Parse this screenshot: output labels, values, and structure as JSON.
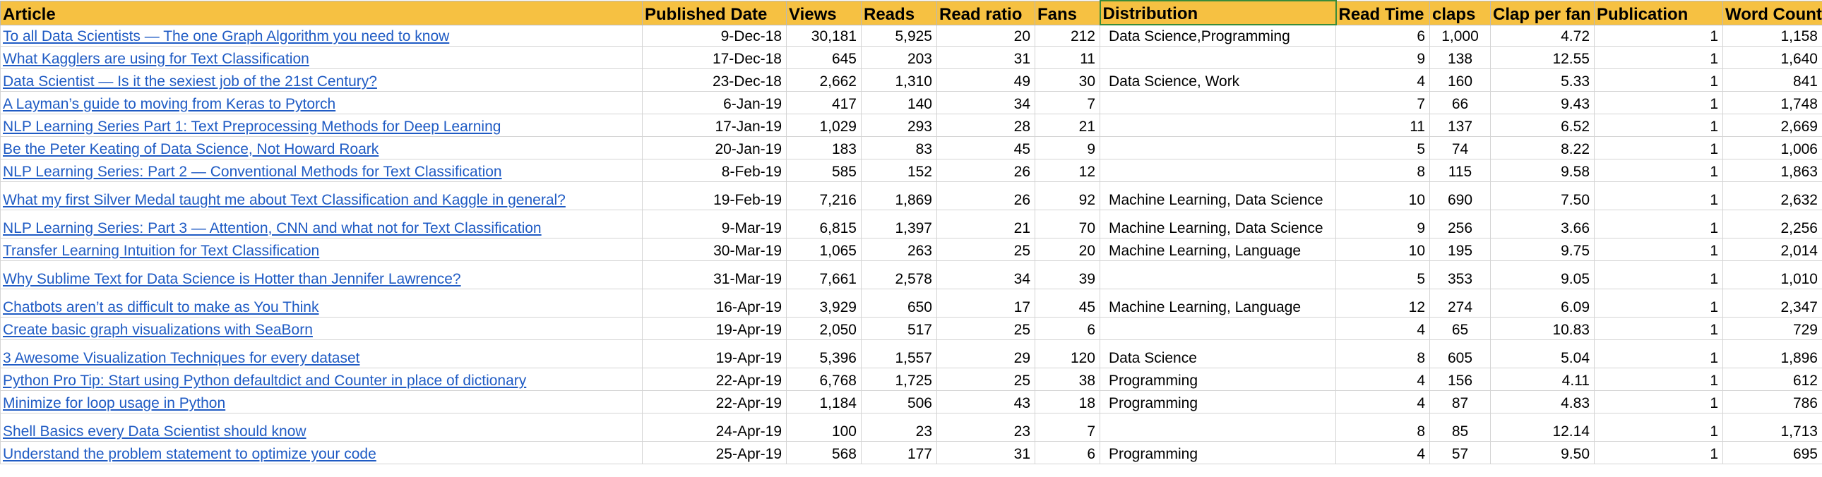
{
  "columns": [
    "Article",
    "Published Date",
    "Views",
    "Reads",
    "Read ratio",
    "Fans",
    "Distribution",
    "Read Time",
    "claps",
    "Clap per fan",
    "Publication",
    "Word Count"
  ],
  "rows": [
    {
      "article": "To all Data Scientists — The one Graph Algorithm you need to know",
      "date": "9-Dec-18",
      "views": "30,181",
      "reads": "5,925",
      "ratio": "20",
      "fans": "212",
      "distribution": "Data Science,Programming",
      "read_time": "6",
      "claps": "1,000",
      "clap_per_fan": "4.72",
      "publication": "1",
      "word_count": "1,158"
    },
    {
      "article": "What Kagglers are using for Text Classification",
      "date": "17-Dec-18",
      "views": "645",
      "reads": "203",
      "ratio": "31",
      "fans": "11",
      "distribution": "",
      "read_time": "9",
      "claps": "138",
      "clap_per_fan": "12.55",
      "publication": "1",
      "word_count": "1,640"
    },
    {
      "article": "Data Scientist — Is it the sexiest job of the 21st Century?",
      "date": "23-Dec-18",
      "views": "2,662",
      "reads": "1,310",
      "ratio": "49",
      "fans": "30",
      "distribution": "Data Science, Work",
      "read_time": "4",
      "claps": "160",
      "clap_per_fan": "5.33",
      "publication": "1",
      "word_count": "841"
    },
    {
      "article": "A Layman’s guide to moving from Keras to Pytorch",
      "date": "6-Jan-19",
      "views": "417",
      "reads": "140",
      "ratio": "34",
      "fans": "7",
      "distribution": "",
      "read_time": "7",
      "claps": "66",
      "clap_per_fan": "9.43",
      "publication": "1",
      "word_count": "1,748"
    },
    {
      "article": "NLP Learning Series Part 1: Text Preprocessing Methods for Deep Learning",
      "date": "17-Jan-19",
      "views": "1,029",
      "reads": "293",
      "ratio": "28",
      "fans": "21",
      "distribution": "",
      "read_time": "11",
      "claps": "137",
      "clap_per_fan": "6.52",
      "publication": "1",
      "word_count": "2,669"
    },
    {
      "article": "Be the Peter Keating of Data Science, Not Howard Roark",
      "date": "20-Jan-19",
      "views": "183",
      "reads": "83",
      "ratio": "45",
      "fans": "9",
      "distribution": "",
      "read_time": "5",
      "claps": "74",
      "clap_per_fan": "8.22",
      "publication": "1",
      "word_count": "1,006"
    },
    {
      "article": "NLP Learning Series: Part 2 — Conventional Methods for Text Classification",
      "date": "8-Feb-19",
      "views": "585",
      "reads": "152",
      "ratio": "26",
      "fans": "12",
      "distribution": "",
      "read_time": "8",
      "claps": "115",
      "clap_per_fan": "9.58",
      "publication": "1",
      "word_count": "1,863"
    },
    {
      "article": "What my first Silver Medal taught me about Text Classification and Kaggle in general?",
      "date": "19-Feb-19",
      "views": "7,216",
      "reads": "1,869",
      "ratio": "26",
      "fans": "92",
      "distribution": "Machine Learning, Data Science",
      "read_time": "10",
      "claps": "690",
      "clap_per_fan": "7.50",
      "publication": "1",
      "word_count": "2,632"
    },
    {
      "article": "NLP Learning Series: Part 3 — Attention, CNN and what not for Text Classification",
      "date": "9-Mar-19",
      "views": "6,815",
      "reads": "1,397",
      "ratio": "21",
      "fans": "70",
      "distribution": "Machine Learning, Data Science",
      "read_time": "9",
      "claps": "256",
      "clap_per_fan": "3.66",
      "publication": "1",
      "word_count": "2,256"
    },
    {
      "article": "Transfer Learning Intuition for Text Classification",
      "date": "30-Mar-19",
      "views": "1,065",
      "reads": "263",
      "ratio": "25",
      "fans": "20",
      "distribution": "Machine Learning, Language",
      "read_time": "10",
      "claps": "195",
      "clap_per_fan": "9.75",
      "publication": "1",
      "word_count": "2,014"
    },
    {
      "article": "Why Sublime Text for Data Science is Hotter than Jennifer Lawrence?",
      "date": "31-Mar-19",
      "views": "7,661",
      "reads": "2,578",
      "ratio": "34",
      "fans": "39",
      "distribution": "",
      "read_time": "5",
      "claps": "353",
      "clap_per_fan": "9.05",
      "publication": "1",
      "word_count": "1,010"
    },
    {
      "article": "Chatbots aren’t as difficult to make as You Think",
      "date": "16-Apr-19",
      "views": "3,929",
      "reads": "650",
      "ratio": "17",
      "fans": "45",
      "distribution": "Machine Learning, Language",
      "read_time": "12",
      "claps": "274",
      "clap_per_fan": "6.09",
      "publication": "1",
      "word_count": "2,347"
    },
    {
      "article": "Create basic graph visualizations with SeaBorn",
      "date": "19-Apr-19",
      "views": "2,050",
      "reads": "517",
      "ratio": "25",
      "fans": "6",
      "distribution": "",
      "read_time": "4",
      "claps": "65",
      "clap_per_fan": "10.83",
      "publication": "1",
      "word_count": "729"
    },
    {
      "article": "3 Awesome Visualization Techniques for every dataset",
      "date": "19-Apr-19",
      "views": "5,396",
      "reads": "1,557",
      "ratio": "29",
      "fans": "120",
      "distribution": "Data Science",
      "read_time": "8",
      "claps": "605",
      "clap_per_fan": "5.04",
      "publication": "1",
      "word_count": "1,896"
    },
    {
      "article": "Python Pro Tip: Start using Python defaultdict and Counter in place of dictionary",
      "date": "22-Apr-19",
      "views": "6,768",
      "reads": "1,725",
      "ratio": "25",
      "fans": "38",
      "distribution": "Programming",
      "read_time": "4",
      "claps": "156",
      "clap_per_fan": "4.11",
      "publication": "1",
      "word_count": "612"
    },
    {
      "article": "Minimize for loop usage in Python",
      "date": "22-Apr-19",
      "views": "1,184",
      "reads": "506",
      "ratio": "43",
      "fans": "18",
      "distribution": "Programming",
      "read_time": "4",
      "claps": "87",
      "clap_per_fan": "4.83",
      "publication": "1",
      "word_count": "786"
    },
    {
      "article": "Shell Basics every Data Scientist should know",
      "date": "24-Apr-19",
      "views": "100",
      "reads": "23",
      "ratio": "23",
      "fans": "7",
      "distribution": "",
      "read_time": "8",
      "claps": "85",
      "clap_per_fan": "12.14",
      "publication": "1",
      "word_count": "1,713"
    },
    {
      "article": "Understand the problem statement to optimize your code",
      "date": "25-Apr-19",
      "views": "568",
      "reads": "177",
      "ratio": "31",
      "fans": "6",
      "distribution": "Programming",
      "read_time": "4",
      "claps": "57",
      "clap_per_fan": "9.50",
      "publication": "1",
      "word_count": "695"
    }
  ],
  "colors": {
    "header_fill": "#f6c142",
    "link": "#1f5bc4",
    "selected_border": "#3a8c3a"
  }
}
